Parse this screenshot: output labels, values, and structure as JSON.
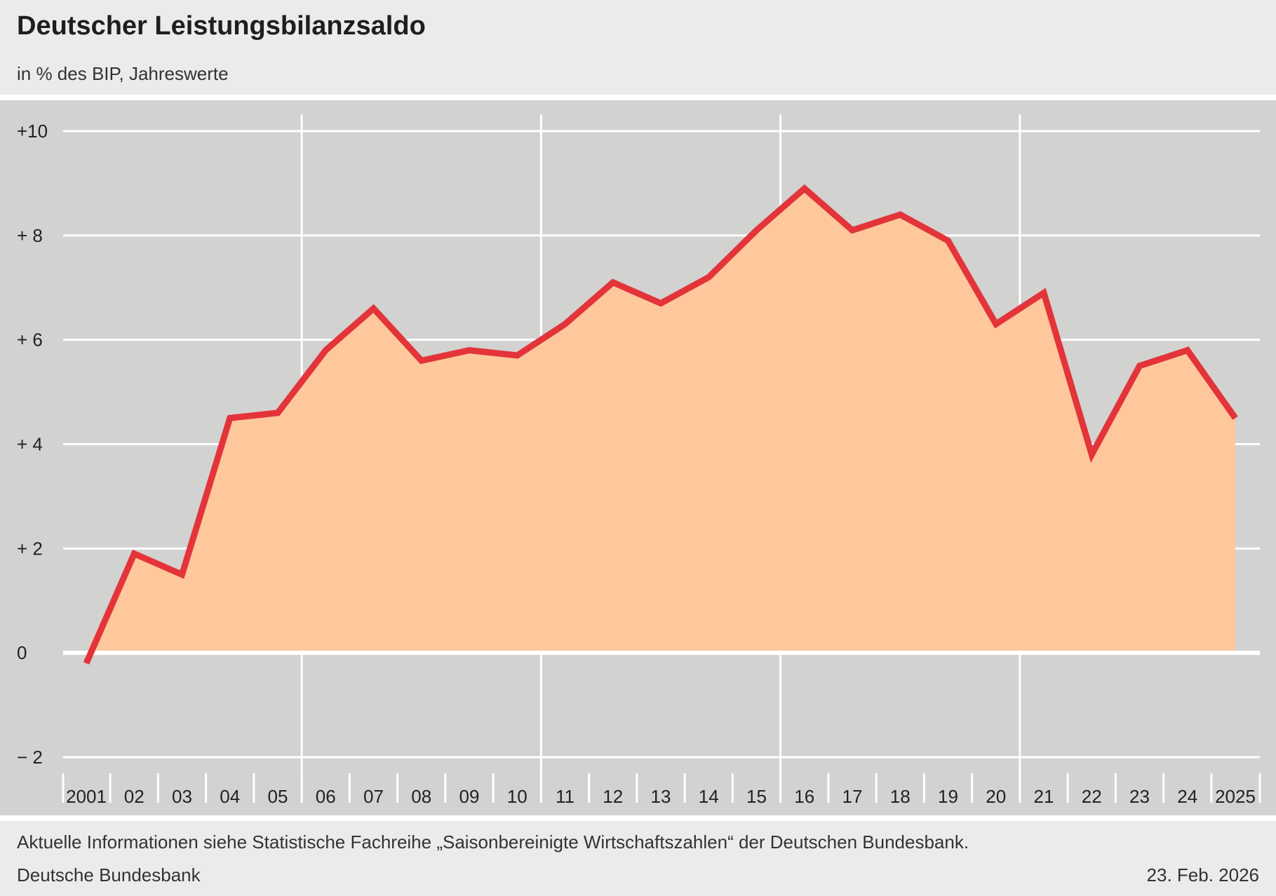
{
  "header": {
    "title": "Deutscher Leistungsbilanzsaldo",
    "subtitle": "in % des BIP, Jahreswerte"
  },
  "footer": {
    "note": "Aktuelle Informationen siehe Statistische Fachreihe „Saisonbereinigte Wirtschaftszahlen“ der Deutschen Bundesbank.",
    "source": "Deutsche Bundesbank",
    "date": "23. Feb. 2026"
  },
  "colors": {
    "background": "#ebebeb",
    "plot_background": "#d2d2d1",
    "grid": "#ffffff",
    "line": "#e3343a",
    "area": "#fec89c"
  },
  "chart_data": {
    "type": "area",
    "title": "Deutscher Leistungsbilanzsaldo",
    "subtitle": "in % des BIP, Jahreswerte",
    "x": [
      2001,
      2002,
      2003,
      2004,
      2005,
      2006,
      2007,
      2008,
      2009,
      2010,
      2011,
      2012,
      2013,
      2014,
      2015,
      2016,
      2017,
      2018,
      2019,
      2020,
      2021,
      2022,
      2023,
      2024,
      2025
    ],
    "x_tick_labels": [
      "2001",
      "02",
      "03",
      "04",
      "05",
      "06",
      "07",
      "08",
      "09",
      "10",
      "11",
      "12",
      "13",
      "14",
      "15",
      "16",
      "17",
      "18",
      "19",
      "20",
      "21",
      "22",
      "23",
      "24",
      "2025"
    ],
    "series": [
      {
        "values": [
          -0.2,
          1.9,
          1.5,
          4.5,
          4.6,
          5.8,
          6.6,
          5.6,
          5.8,
          5.7,
          6.3,
          7.1,
          6.7,
          7.2,
          8.1,
          8.9,
          8.1,
          8.4,
          7.9,
          6.3,
          6.9,
          3.8,
          5.5,
          5.8,
          4.5
        ]
      }
    ],
    "ylim": [
      -2,
      10
    ],
    "y_ticks": [
      10,
      8,
      6,
      4,
      2,
      0,
      -2
    ],
    "y_tick_labels": [
      "+10",
      "+  8",
      "+  6",
      "+  4",
      "+  2",
      "0",
      "−  2"
    ],
    "vertical_grid_at": [
      2006,
      2011,
      2016,
      2021
    ],
    "grid": true,
    "legend": "none"
  }
}
